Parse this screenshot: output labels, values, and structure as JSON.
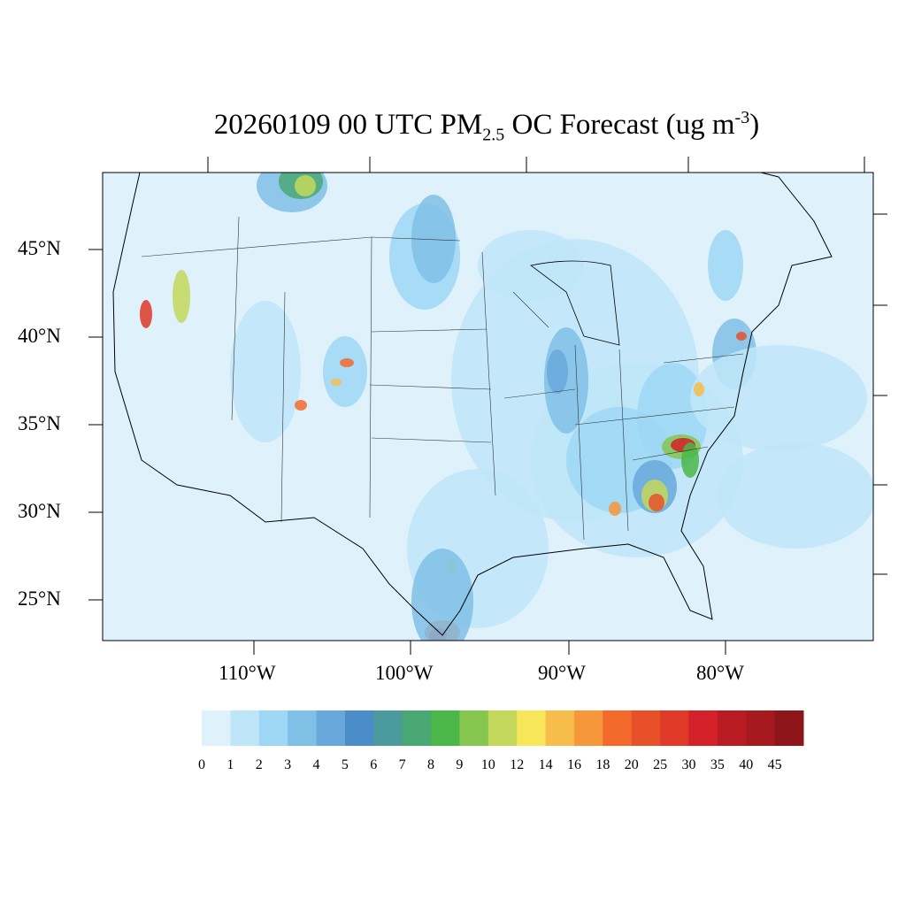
{
  "title": {
    "main": "20260109 00 UTC PM",
    "sub": "2.5",
    "mid": " OC Forecast (ug m",
    "sup": "-3",
    "end": ")"
  },
  "map": {
    "projection": "lambert-conformal",
    "region": "CONUS",
    "lat_labels": [
      "45°N",
      "40°N",
      "35°N",
      "30°N",
      "25°N"
    ],
    "lon_labels": [
      "110°W",
      "100°W",
      "90°W",
      "80°W"
    ],
    "background_color": "#dff2fb"
  },
  "colorbar": {
    "labels": [
      "0",
      "1",
      "2",
      "3",
      "4",
      "5",
      "6",
      "7",
      "8",
      "9",
      "10",
      "12",
      "14",
      "16",
      "18",
      "20",
      "25",
      "30",
      "35",
      "40",
      "45"
    ],
    "colors": [
      "#dff2fb",
      "#bfe6f8",
      "#9dd7f5",
      "#80bfe6",
      "#68a8da",
      "#4a8dc8",
      "#4a9a9e",
      "#4aa874",
      "#4bb748",
      "#86c64e",
      "#c3d85a",
      "#f8e65a",
      "#f7bd4c",
      "#f7973b",
      "#f46a2c",
      "#e8502a",
      "#de3a27",
      "#d32029",
      "#b81c22",
      "#a6191e",
      "#8e1519"
    ]
  }
}
